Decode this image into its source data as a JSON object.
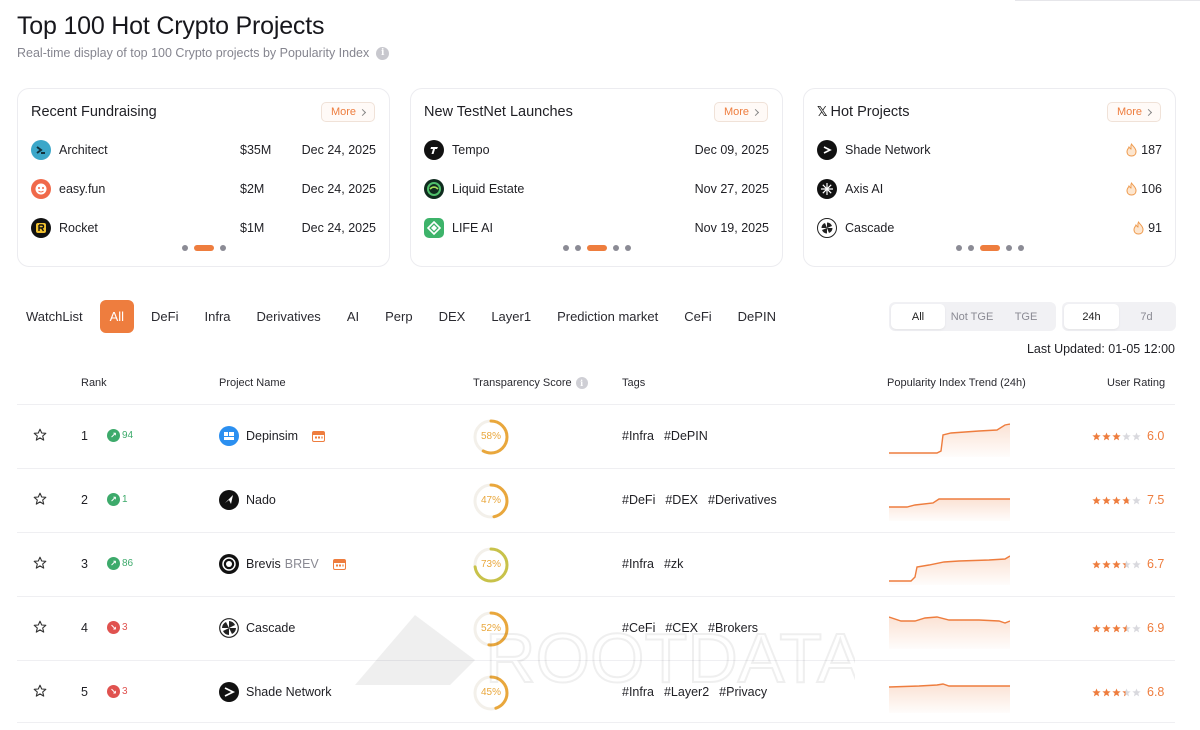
{
  "header": {
    "title": "Top 100 Hot Crypto Projects",
    "subtitle": "Real-time display of top 100 Crypto projects by Popularity Index",
    "info_icon": "i"
  },
  "colors": {
    "accent": "#ee7d3e",
    "up": "#3daa6b",
    "down": "#e0524f",
    "score": "#e9a73c",
    "score_high": "#c8c24a"
  },
  "cards": {
    "more_label": "More",
    "fundraising": {
      "title": "Recent Fundraising",
      "rows": [
        {
          "name": "Architect",
          "amount": "$35M",
          "date": "Dec 24, 2025"
        },
        {
          "name": "easy.fun",
          "amount": "$2M",
          "date": "Dec 24, 2025"
        },
        {
          "name": "Rocket",
          "amount": "$1M",
          "date": "Dec 24, 2025"
        }
      ]
    },
    "testnet": {
      "title": "New TestNet Launches",
      "rows": [
        {
          "name": "Tempo",
          "date": "Dec 09, 2025"
        },
        {
          "name": "Liquid Estate",
          "date": "Nov 27, 2025"
        },
        {
          "name": "LIFE AI",
          "date": "Nov 19, 2025"
        }
      ]
    },
    "hot": {
      "title": "Hot Projects",
      "x_icon": "𝕏",
      "rows": [
        {
          "name": "Shade Network",
          "count": "187"
        },
        {
          "name": "Axis AI",
          "count": "106"
        },
        {
          "name": "Cascade",
          "count": "91"
        }
      ]
    }
  },
  "filters": {
    "tabs": [
      "WatchList",
      "All",
      "DeFi",
      "Infra",
      "Derivatives",
      "AI",
      "Perp",
      "DEX",
      "Layer1",
      "Prediction market",
      "CeFi",
      "DePIN"
    ],
    "active_tab": "All",
    "tge": [
      "All",
      "Not TGE",
      "TGE"
    ],
    "tge_active": "All",
    "period": [
      "24h",
      "7d"
    ],
    "period_active": "24h"
  },
  "last_updated": "Last Updated: 01-05 12:00",
  "table": {
    "headers": {
      "rank": "Rank",
      "project": "Project Name",
      "transparency": "Transparency Score",
      "tags": "Tags",
      "trend": "Popularity Index Trend (24h)",
      "rating": "User Rating"
    },
    "rows": [
      {
        "rank": "1",
        "change": "94",
        "direction": "up",
        "name": "Depinsim",
        "ticker": "",
        "calendar": true,
        "score_text": "58%",
        "score": 0.58,
        "tags": [
          "#Infra",
          "#DePIN"
        ],
        "rating": "6.0",
        "stars": 3.0
      },
      {
        "rank": "2",
        "change": "1",
        "direction": "up",
        "name": "Nado",
        "ticker": "",
        "calendar": false,
        "score_text": "47%",
        "score": 0.47,
        "tags": [
          "#DeFi",
          "#DEX",
          "#Derivatives"
        ],
        "rating": "7.5",
        "stars": 3.75
      },
      {
        "rank": "3",
        "change": "86",
        "direction": "up",
        "name": "Brevis",
        "ticker": "BREV",
        "calendar": true,
        "score_text": "73%",
        "score": 0.73,
        "tags": [
          "#Infra",
          "#zk"
        ],
        "rating": "6.7",
        "stars": 3.4
      },
      {
        "rank": "4",
        "change": "3",
        "direction": "down",
        "name": "Cascade",
        "ticker": "",
        "calendar": false,
        "score_text": "52%",
        "score": 0.52,
        "tags": [
          "#CeFi",
          "#CEX",
          "#Brokers"
        ],
        "rating": "6.9",
        "stars": 3.5
      },
      {
        "rank": "5",
        "change": "3",
        "direction": "down",
        "name": "Shade Network",
        "ticker": "",
        "calendar": false,
        "score_text": "45%",
        "score": 0.45,
        "tags": [
          "#Infra",
          "#Layer2",
          "#Privacy"
        ],
        "rating": "6.8",
        "stars": 3.4
      }
    ]
  },
  "watermark": "ROOTDATA"
}
